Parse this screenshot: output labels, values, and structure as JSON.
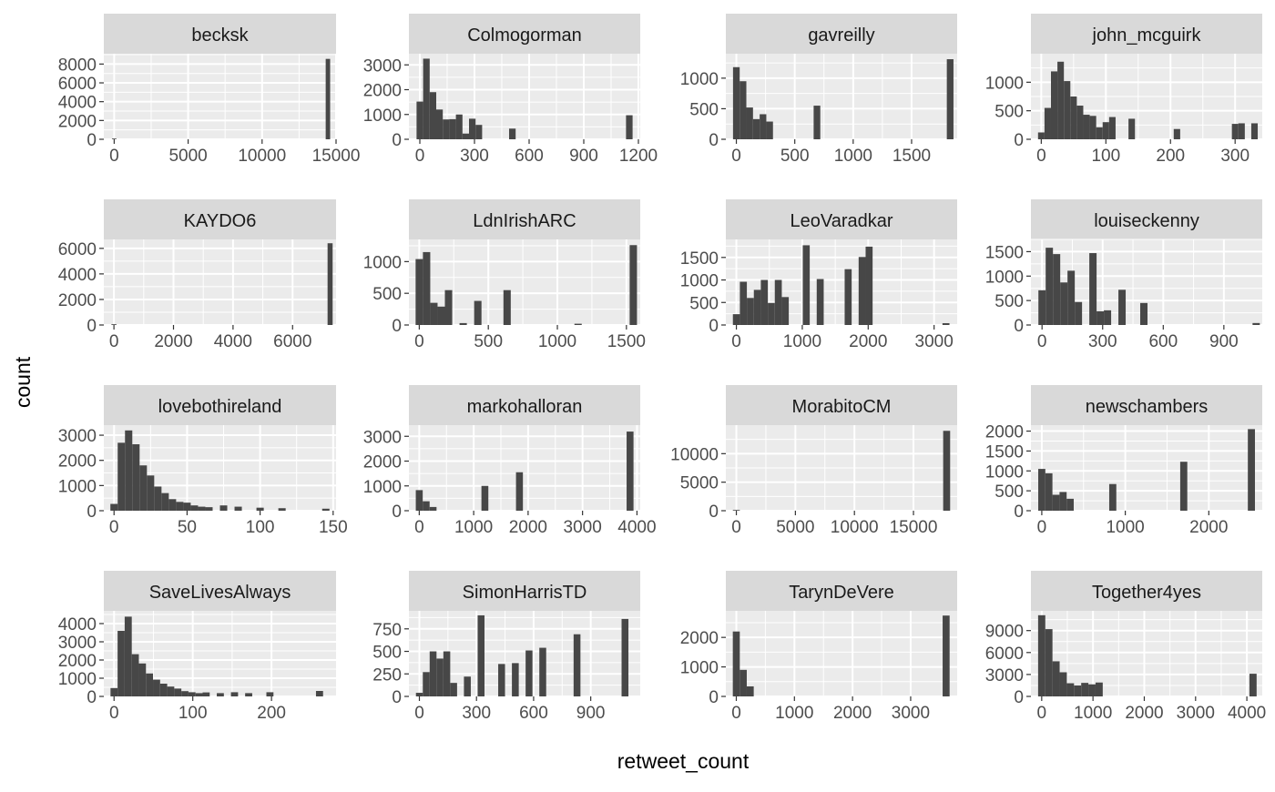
{
  "figure": {
    "xlabel": "retweet_count",
    "ylabel": "count",
    "colors": {
      "panel_bg": "#EBEBEB",
      "strip_bg": "#D9D9D9",
      "grid": "#FFFFFF",
      "bar": "#474747",
      "text": "#4D4D4D",
      "strip_text": "#1A1A1A",
      "axis_title": "#000000"
    }
  },
  "chart_data": [
    {
      "type": "bar",
      "facet": "becksk",
      "xlim": [
        -700,
        15000
      ],
      "ylim": [
        0,
        9100
      ],
      "x_ticks": [
        0,
        5000,
        10000,
        15000
      ],
      "x_tick_labels": [
        "0",
        "5000",
        "10000",
        "15000"
      ],
      "y_ticks": [
        0,
        2000,
        4000,
        6000,
        8000
      ],
      "y_tick_labels": [
        "0",
        "2000",
        "4000",
        "6000",
        "8000"
      ],
      "bin_width": 300,
      "bins": [
        {
          "x": 0,
          "count": 60
        },
        {
          "x": 14450,
          "count": 8550
        }
      ]
    },
    {
      "type": "bar",
      "facet": "Colmogorman",
      "xlim": [
        -60,
        1210
      ],
      "ylim": [
        0,
        3450
      ],
      "x_ticks": [
        0,
        300,
        600,
        900,
        1200
      ],
      "x_tick_labels": [
        "0",
        "300",
        "600",
        "900",
        "1200"
      ],
      "y_ticks": [
        0,
        1000,
        2000,
        3000
      ],
      "y_tick_labels": [
        "0",
        "1000",
        "2000",
        "3000"
      ],
      "bin_width": 36,
      "bins": [
        {
          "x": 0,
          "count": 1520
        },
        {
          "x": 36,
          "count": 3250
        },
        {
          "x": 72,
          "count": 1900
        },
        {
          "x": 108,
          "count": 1200
        },
        {
          "x": 144,
          "count": 800
        },
        {
          "x": 180,
          "count": 810
        },
        {
          "x": 216,
          "count": 1000
        },
        {
          "x": 252,
          "count": 230
        },
        {
          "x": 288,
          "count": 830
        },
        {
          "x": 324,
          "count": 580
        },
        {
          "x": 508,
          "count": 430
        },
        {
          "x": 1150,
          "count": 970
        }
      ]
    },
    {
      "type": "bar",
      "facet": "gavreilly",
      "xlim": [
        -90,
        1890
      ],
      "ylim": [
        0,
        1400
      ],
      "x_ticks": [
        0,
        500,
        1000,
        1500
      ],
      "x_tick_labels": [
        "0",
        "500",
        "1000",
        "1500"
      ],
      "y_ticks": [
        0,
        500,
        1000
      ],
      "y_tick_labels": [
        "0",
        "500",
        "1000"
      ],
      "bin_width": 57,
      "bins": [
        {
          "x": 0,
          "count": 1180
        },
        {
          "x": 57,
          "count": 950
        },
        {
          "x": 114,
          "count": 520
        },
        {
          "x": 171,
          "count": 330
        },
        {
          "x": 228,
          "count": 410
        },
        {
          "x": 285,
          "count": 290
        },
        {
          "x": 690,
          "count": 550
        },
        {
          "x": 1830,
          "count": 1310
        }
      ]
    },
    {
      "type": "bar",
      "facet": "john_mcguirk",
      "xlim": [
        -16,
        342
      ],
      "ylim": [
        0,
        1500
      ],
      "x_ticks": [
        0,
        100,
        200,
        300
      ],
      "x_tick_labels": [
        "0",
        "100",
        "200",
        "300"
      ],
      "y_ticks": [
        0,
        500,
        1000
      ],
      "y_tick_labels": [
        "0",
        "500",
        "1000"
      ],
      "bin_width": 10,
      "bins": [
        {
          "x": 0,
          "count": 120
        },
        {
          "x": 10,
          "count": 550
        },
        {
          "x": 20,
          "count": 1190
        },
        {
          "x": 30,
          "count": 1360
        },
        {
          "x": 40,
          "count": 1020
        },
        {
          "x": 50,
          "count": 750
        },
        {
          "x": 60,
          "count": 590
        },
        {
          "x": 70,
          "count": 430
        },
        {
          "x": 80,
          "count": 410
        },
        {
          "x": 90,
          "count": 210
        },
        {
          "x": 100,
          "count": 300
        },
        {
          "x": 110,
          "count": 390
        },
        {
          "x": 140,
          "count": 360
        },
        {
          "x": 210,
          "count": 180
        },
        {
          "x": 300,
          "count": 270
        },
        {
          "x": 310,
          "count": 280
        },
        {
          "x": 330,
          "count": 280
        }
      ]
    },
    {
      "type": "bar",
      "facet": "KAYDO6",
      "xlim": [
        -340,
        7460
      ],
      "ylim": [
        0,
        6700
      ],
      "x_ticks": [
        0,
        2000,
        4000,
        6000
      ],
      "x_tick_labels": [
        "0",
        "2000",
        "4000",
        "6000"
      ],
      "y_ticks": [
        0,
        2000,
        4000,
        6000
      ],
      "y_tick_labels": [
        "0",
        "2000",
        "4000",
        "6000"
      ],
      "bin_width": 170,
      "bins": [
        {
          "x": 0,
          "count": 60
        },
        {
          "x": 7260,
          "count": 6400
        }
      ]
    },
    {
      "type": "bar",
      "facet": "LdnIrishARC",
      "xlim": [
        -75,
        1600
      ],
      "ylim": [
        0,
        1350
      ],
      "x_ticks": [
        0,
        500,
        1000,
        1500
      ],
      "x_tick_labels": [
        "0",
        "500",
        "1000",
        "1500"
      ],
      "y_ticks": [
        0,
        500,
        1000
      ],
      "y_tick_labels": [
        "0",
        "500",
        "1000"
      ],
      "bin_width": 53,
      "bins": [
        {
          "x": 0,
          "count": 1040
        },
        {
          "x": 53,
          "count": 1150
        },
        {
          "x": 106,
          "count": 350
        },
        {
          "x": 159,
          "count": 290
        },
        {
          "x": 212,
          "count": 550
        },
        {
          "x": 318,
          "count": 30
        },
        {
          "x": 424,
          "count": 380
        },
        {
          "x": 636,
          "count": 550
        },
        {
          "x": 1150,
          "count": 20
        },
        {
          "x": 1550,
          "count": 1260
        }
      ]
    },
    {
      "type": "bar",
      "facet": "LeoVaradkar",
      "xlim": [
        -160,
        3350
      ],
      "ylim": [
        0,
        1900
      ],
      "x_ticks": [
        0,
        1000,
        2000,
        3000
      ],
      "x_tick_labels": [
        "0",
        "1000",
        "2000",
        "3000"
      ],
      "y_ticks": [
        0,
        500,
        1000,
        1500
      ],
      "y_tick_labels": [
        "0",
        "500",
        "1000",
        "1500"
      ],
      "bin_width": 106,
      "bins": [
        {
          "x": 0,
          "count": 240
        },
        {
          "x": 106,
          "count": 960
        },
        {
          "x": 212,
          "count": 600
        },
        {
          "x": 318,
          "count": 780
        },
        {
          "x": 424,
          "count": 1000
        },
        {
          "x": 530,
          "count": 490
        },
        {
          "x": 636,
          "count": 1000
        },
        {
          "x": 742,
          "count": 620
        },
        {
          "x": 1060,
          "count": 1770
        },
        {
          "x": 1272,
          "count": 1020
        },
        {
          "x": 1696,
          "count": 1240
        },
        {
          "x": 1908,
          "count": 1510
        },
        {
          "x": 2014,
          "count": 1740
        },
        {
          "x": 3180,
          "count": 40
        }
      ]
    },
    {
      "type": "bar",
      "facet": "louiseckenny",
      "xlim": [
        -55,
        1090
      ],
      "ylim": [
        0,
        1750
      ],
      "x_ticks": [
        0,
        300,
        600,
        900
      ],
      "x_tick_labels": [
        "0",
        "300",
        "600",
        "900"
      ],
      "y_ticks": [
        0,
        500,
        1000,
        1500
      ],
      "y_tick_labels": [
        "0",
        "500",
        "1000",
        "1500"
      ],
      "bin_width": 36,
      "bins": [
        {
          "x": 0,
          "count": 710
        },
        {
          "x": 36,
          "count": 1580
        },
        {
          "x": 72,
          "count": 1450
        },
        {
          "x": 108,
          "count": 870
        },
        {
          "x": 144,
          "count": 1110
        },
        {
          "x": 180,
          "count": 470
        },
        {
          "x": 252,
          "count": 1470
        },
        {
          "x": 288,
          "count": 280
        },
        {
          "x": 324,
          "count": 300
        },
        {
          "x": 396,
          "count": 720
        },
        {
          "x": 504,
          "count": 450
        },
        {
          "x": 1060,
          "count": 40
        }
      ]
    },
    {
      "type": "bar",
      "facet": "lovebothireland",
      "xlim": [
        -7,
        152
      ],
      "ylim": [
        0,
        3400
      ],
      "x_ticks": [
        0,
        50,
        100,
        150
      ],
      "x_tick_labels": [
        "0",
        "50",
        "100",
        "150"
      ],
      "y_ticks": [
        0,
        1000,
        2000,
        3000
      ],
      "y_tick_labels": [
        "0",
        "1000",
        "2000",
        "3000"
      ],
      "bin_width": 5,
      "bins": [
        {
          "x": 0,
          "count": 270
        },
        {
          "x": 5,
          "count": 2700
        },
        {
          "x": 10,
          "count": 3190
        },
        {
          "x": 15,
          "count": 2640
        },
        {
          "x": 20,
          "count": 1800
        },
        {
          "x": 25,
          "count": 1400
        },
        {
          "x": 30,
          "count": 960
        },
        {
          "x": 35,
          "count": 700
        },
        {
          "x": 40,
          "count": 460
        },
        {
          "x": 45,
          "count": 350
        },
        {
          "x": 50,
          "count": 320
        },
        {
          "x": 55,
          "count": 210
        },
        {
          "x": 60,
          "count": 160
        },
        {
          "x": 65,
          "count": 140
        },
        {
          "x": 75,
          "count": 210
        },
        {
          "x": 85,
          "count": 160
        },
        {
          "x": 100,
          "count": 120
        },
        {
          "x": 115,
          "count": 100
        },
        {
          "x": 145,
          "count": 80
        }
      ]
    },
    {
      "type": "bar",
      "facet": "markohalloran",
      "xlim": [
        -190,
        4060
      ],
      "ylim": [
        0,
        3450
      ],
      "x_ticks": [
        0,
        1000,
        2000,
        3000,
        4000
      ],
      "x_tick_labels": [
        "0",
        "1000",
        "2000",
        "3000",
        "4000"
      ],
      "y_ticks": [
        0,
        1000,
        2000,
        3000
      ],
      "y_tick_labels": [
        "0",
        "1000",
        "2000",
        "3000"
      ],
      "bin_width": 127,
      "bins": [
        {
          "x": 0,
          "count": 830
        },
        {
          "x": 127,
          "count": 380
        },
        {
          "x": 254,
          "count": 150
        },
        {
          "x": 1206,
          "count": 1000
        },
        {
          "x": 1841,
          "count": 1550
        },
        {
          "x": 3873,
          "count": 3190
        }
      ]
    },
    {
      "type": "bar",
      "facet": "MorabitoCM",
      "xlim": [
        -890,
        18700
      ],
      "ylim": [
        0,
        15000
      ],
      "x_ticks": [
        0,
        5000,
        10000,
        15000
      ],
      "x_tick_labels": [
        "0",
        "5000",
        "10000",
        "15000"
      ],
      "y_ticks": [
        0,
        5000,
        10000
      ],
      "y_tick_labels": [
        "0",
        "5000",
        "10000"
      ],
      "bin_width": 590,
      "bins": [
        {
          "x": 0,
          "count": 120
        },
        {
          "x": 17810,
          "count": 14000
        }
      ]
    },
    {
      "type": "bar",
      "facet": "newschambers",
      "xlim": [
        -130,
        2640
      ],
      "ylim": [
        0,
        2150
      ],
      "x_ticks": [
        0,
        1000,
        2000
      ],
      "x_tick_labels": [
        "0",
        "1000",
        "2000"
      ],
      "y_ticks": [
        0,
        500,
        1000,
        1500,
        2000
      ],
      "y_tick_labels": [
        "0",
        "500",
        "1000",
        "1500",
        "2000"
      ],
      "bin_width": 85,
      "bins": [
        {
          "x": 0,
          "count": 1050
        },
        {
          "x": 85,
          "count": 940
        },
        {
          "x": 170,
          "count": 400
        },
        {
          "x": 255,
          "count": 470
        },
        {
          "x": 340,
          "count": 300
        },
        {
          "x": 850,
          "count": 670
        },
        {
          "x": 1700,
          "count": 1230
        },
        {
          "x": 2510,
          "count": 2050
        }
      ]
    },
    {
      "type": "bar",
      "facet": "SaveLivesAlways",
      "xlim": [
        -13,
        282
      ],
      "ylim": [
        0,
        4700
      ],
      "x_ticks": [
        0,
        100,
        200
      ],
      "x_tick_labels": [
        "0",
        "100",
        "200"
      ],
      "y_ticks": [
        0,
        1000,
        2000,
        3000,
        4000
      ],
      "y_tick_labels": [
        "0",
        "1000",
        "2000",
        "3000",
        "4000"
      ],
      "bin_width": 9,
      "bins": [
        {
          "x": 0,
          "count": 460
        },
        {
          "x": 9,
          "count": 3600
        },
        {
          "x": 18,
          "count": 4380
        },
        {
          "x": 27,
          "count": 2320
        },
        {
          "x": 36,
          "count": 1810
        },
        {
          "x": 45,
          "count": 1260
        },
        {
          "x": 54,
          "count": 920
        },
        {
          "x": 63,
          "count": 700
        },
        {
          "x": 72,
          "count": 540
        },
        {
          "x": 81,
          "count": 430
        },
        {
          "x": 90,
          "count": 290
        },
        {
          "x": 99,
          "count": 230
        },
        {
          "x": 108,
          "count": 180
        },
        {
          "x": 117,
          "count": 220
        },
        {
          "x": 135,
          "count": 180
        },
        {
          "x": 153,
          "count": 230
        },
        {
          "x": 171,
          "count": 180
        },
        {
          "x": 198,
          "count": 230
        },
        {
          "x": 261,
          "count": 300
        }
      ]
    },
    {
      "type": "bar",
      "facet": "SimonHarrisTD",
      "xlim": [
        -55,
        1160
      ],
      "ylim": [
        0,
        950
      ],
      "x_ticks": [
        0,
        300,
        600,
        900
      ],
      "x_tick_labels": [
        "0",
        "300",
        "600",
        "900"
      ],
      "y_ticks": [
        0,
        250,
        500,
        750
      ],
      "y_tick_labels": [
        "0",
        "250",
        "500",
        "750"
      ],
      "bin_width": 36,
      "bins": [
        {
          "x": 0,
          "count": 40
        },
        {
          "x": 36,
          "count": 270
        },
        {
          "x": 72,
          "count": 500
        },
        {
          "x": 108,
          "count": 420
        },
        {
          "x": 144,
          "count": 500
        },
        {
          "x": 180,
          "count": 150
        },
        {
          "x": 252,
          "count": 220
        },
        {
          "x": 324,
          "count": 900
        },
        {
          "x": 432,
          "count": 360
        },
        {
          "x": 504,
          "count": 370
        },
        {
          "x": 576,
          "count": 510
        },
        {
          "x": 648,
          "count": 540
        },
        {
          "x": 828,
          "count": 690
        },
        {
          "x": 1080,
          "count": 860
        }
      ]
    },
    {
      "type": "bar",
      "facet": "TarynDeVere",
      "xlim": [
        -180,
        3800
      ],
      "ylim": [
        0,
        2900
      ],
      "x_ticks": [
        0,
        1000,
        2000,
        3000
      ],
      "x_tick_labels": [
        "0",
        "1000",
        "2000",
        "3000"
      ],
      "y_ticks": [
        0,
        1000,
        2000
      ],
      "y_tick_labels": [
        "0",
        "1000",
        "2000"
      ],
      "bin_width": 120,
      "bins": [
        {
          "x": 0,
          "count": 2200
        },
        {
          "x": 120,
          "count": 900
        },
        {
          "x": 240,
          "count": 340
        },
        {
          "x": 3610,
          "count": 2740
        }
      ]
    },
    {
      "type": "bar",
      "facet": "Together4yes",
      "xlim": [
        -210,
        4300
      ],
      "ylim": [
        0,
        11700
      ],
      "x_ticks": [
        0,
        1000,
        2000,
        3000,
        4000
      ],
      "x_tick_labels": [
        "0",
        "1000",
        "2000",
        "3000",
        "4000"
      ],
      "y_ticks": [
        0,
        3000,
        6000,
        9000
      ],
      "y_tick_labels": [
        "0",
        "3000",
        "6000",
        "9000"
      ],
      "bin_width": 140,
      "bins": [
        {
          "x": 0,
          "count": 11100
        },
        {
          "x": 140,
          "count": 9200
        },
        {
          "x": 280,
          "count": 4800
        },
        {
          "x": 420,
          "count": 3300
        },
        {
          "x": 560,
          "count": 1800
        },
        {
          "x": 700,
          "count": 1500
        },
        {
          "x": 840,
          "count": 1850
        },
        {
          "x": 980,
          "count": 1650
        },
        {
          "x": 1120,
          "count": 1900
        },
        {
          "x": 4120,
          "count": 3100
        }
      ]
    }
  ]
}
